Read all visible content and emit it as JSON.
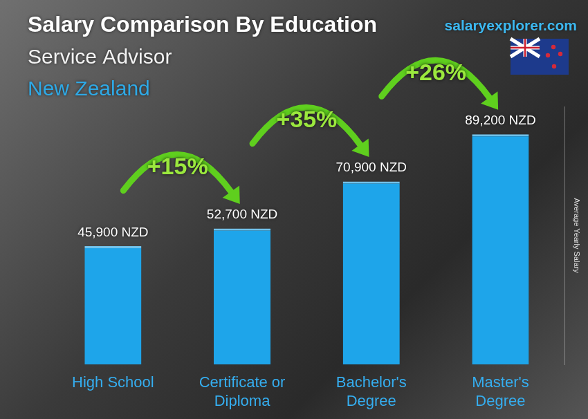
{
  "chart_data": {
    "type": "bar",
    "title": "Salary Comparison By Education",
    "subtitle": [
      "Service Advisor",
      "New Zealand"
    ],
    "source": "salaryexplorer.com",
    "y_label": "Average Yearly Salary",
    "categories": [
      "High School",
      "Certificate or Diploma",
      "Bachelor's Degree",
      "Master's Degree"
    ],
    "values": [
      45900,
      52700,
      70900,
      89200
    ],
    "value_labels": [
      "45,900 NZD",
      "52,700 NZD",
      "70,900 NZD",
      "89,200 NZD"
    ],
    "annotations": [
      "+15%",
      "+35%",
      "+26%"
    ],
    "color": "#1ea5ea",
    "ylim": [
      0,
      100000
    ],
    "grid": false,
    "data_labels": true,
    "tick_labels": "x"
  }
}
